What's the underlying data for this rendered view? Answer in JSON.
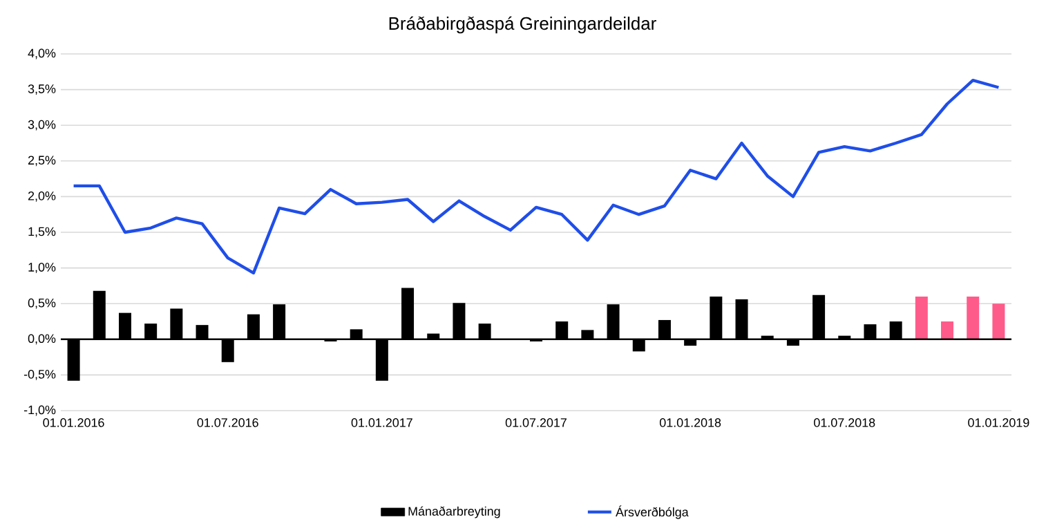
{
  "chart_data": {
    "type": "bar",
    "title": "Bráðabirgðaspá Greiningardeildar",
    "categories": [
      "01.01.2016",
      null,
      null,
      null,
      null,
      null,
      "01.07.2016",
      null,
      null,
      null,
      null,
      null,
      "01.01.2017",
      null,
      null,
      null,
      null,
      null,
      "01.07.2017",
      null,
      null,
      null,
      null,
      null,
      "01.01.2018",
      null,
      null,
      null,
      null,
      null,
      "01.07.2018",
      null,
      null,
      null,
      null,
      null,
      "01.01.2019"
    ],
    "series": [
      {
        "name": "Mánaðarbreyting",
        "color": "#000000",
        "colors": [
          "#000000",
          "#000000",
          "#000000",
          "#000000",
          "#000000",
          "#000000",
          "#000000",
          "#000000",
          "#000000",
          "#000000",
          "#000000",
          "#000000",
          "#000000",
          "#000000",
          "#000000",
          "#000000",
          "#000000",
          "#000000",
          "#000000",
          "#000000",
          "#000000",
          "#000000",
          "#000000",
          "#000000",
          "#000000",
          "#000000",
          "#000000",
          "#000000",
          "#000000",
          "#000000",
          "#000000",
          "#000000",
          "#000000",
          "#ff5b8a",
          "#ff5b8a",
          "#ff5b8a",
          "#ff5b8a"
        ],
        "values": [
          -0.58,
          0.68,
          0.37,
          0.22,
          0.43,
          0.2,
          -0.32,
          0.35,
          0.49,
          0,
          -0.03,
          0.14,
          -0.58,
          0.72,
          0.08,
          0.51,
          0.22,
          0,
          -0.03,
          0.25,
          0.13,
          0.49,
          -0.17,
          0.27,
          -0.09,
          0.6,
          0.56,
          0.05,
          -0.09,
          0.62,
          0.05,
          0.21,
          0.25,
          0.6,
          0.25,
          0.6,
          0.5
        ]
      },
      {
        "name": "Ársverðbólga",
        "type": "line",
        "color": "#1f4ee8",
        "values": [
          2.15,
          2.15,
          1.5,
          1.56,
          1.7,
          1.62,
          1.14,
          0.93,
          1.84,
          1.76,
          2.1,
          1.9,
          1.92,
          1.96,
          1.65,
          1.94,
          1.72,
          1.53,
          1.85,
          1.75,
          1.39,
          1.88,
          1.75,
          1.87,
          2.37,
          2.25,
          2.75,
          2.29,
          2.0,
          2.62,
          2.7,
          2.64,
          2.75,
          2.87,
          3.3,
          3.63,
          3.53
        ]
      }
    ],
    "ylim": [
      -1,
      4
    ],
    "yticks": [
      {
        "value": -1,
        "label": "-1,0%"
      },
      {
        "value": -0.5,
        "label": "-0,5%"
      },
      {
        "value": 0,
        "label": "0,0%"
      },
      {
        "value": 0.5,
        "label": "0,5%"
      },
      {
        "value": 1,
        "label": "1,0%"
      },
      {
        "value": 1.5,
        "label": "1,5%"
      },
      {
        "value": 2,
        "label": "2,0%"
      },
      {
        "value": 2.5,
        "label": "2,5%"
      },
      {
        "value": 3,
        "label": "3,0%"
      },
      {
        "value": 3.5,
        "label": "3,5%"
      },
      {
        "value": 4,
        "label": "4,0%"
      }
    ],
    "grid": "y",
    "legend": "bottom"
  }
}
